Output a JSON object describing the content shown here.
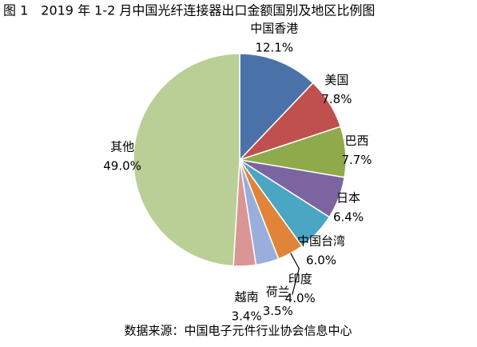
{
  "chart_data": {
    "type": "pie",
    "title": "图 1　2019 年 1-2 月中国光纤连接器出口金额国别及地区比例图",
    "source": "数据来源：中国电子元件行业协会信息中心",
    "categories": [
      "中国香港",
      "美国",
      "巴西",
      "日本",
      "中国台湾",
      "印度",
      "荷兰",
      "越南",
      "其他"
    ],
    "values": [
      12.1,
      7.8,
      7.7,
      6.4,
      6.0,
      4.0,
      3.5,
      3.4,
      49.0
    ],
    "value_labels": [
      "12.1%",
      "7.8%",
      "7.7%",
      "6.4%",
      "6.0%",
      "4.0%",
      "3.5%",
      "3.4%",
      "49.0%"
    ],
    "colors": [
      "#4a72a8",
      "#c0504d",
      "#8faa4a",
      "#7b64a0",
      "#4ba6c4",
      "#e0843a",
      "#9aaedb",
      "#d99694",
      "#b9cf96"
    ]
  }
}
